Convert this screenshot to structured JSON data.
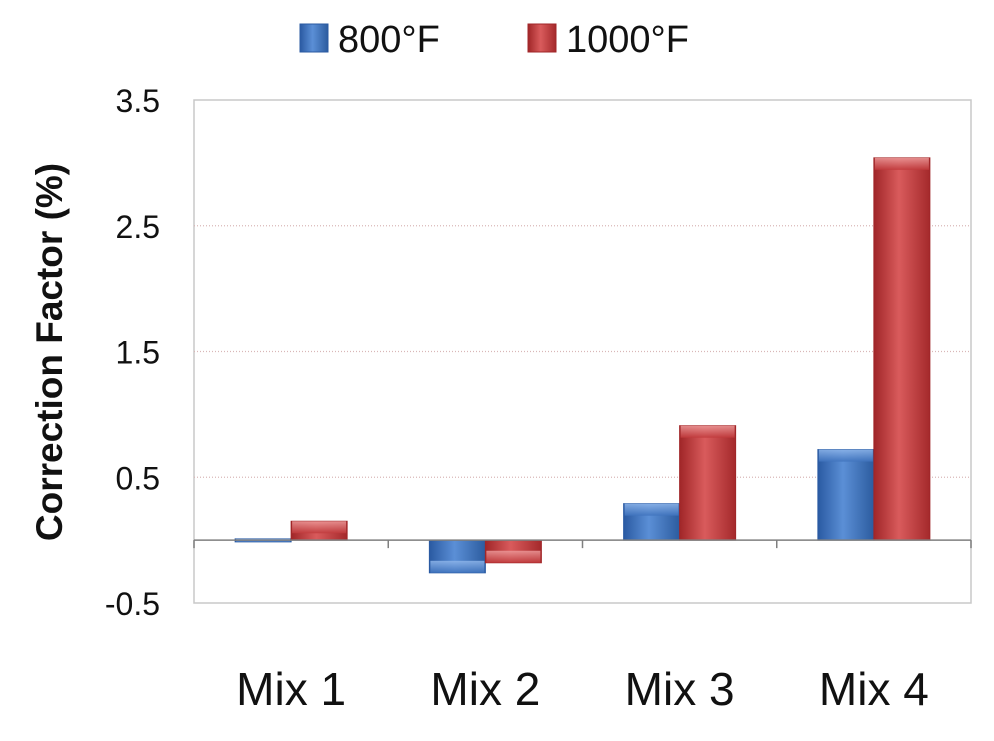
{
  "chart_data": {
    "type": "bar",
    "title": "",
    "xlabel": "",
    "ylabel": "Correction Factor (%)",
    "categories": [
      "Mix 1",
      "Mix 2",
      "Mix 3",
      "Mix 4"
    ],
    "series": [
      {
        "name": "800°F",
        "color": "#3e72bd",
        "values": [
          0.01,
          -0.26,
          0.29,
          0.72
        ]
      },
      {
        "name": "1000°F",
        "color": "#c0393b",
        "values": [
          0.15,
          -0.18,
          0.91,
          3.04
        ]
      }
    ],
    "yticks": [
      "3.5",
      "2.5",
      "1.5",
      "0.5",
      "-0.5"
    ],
    "ytick_values": [
      3.5,
      2.5,
      1.5,
      0.5,
      -0.5
    ],
    "ylim": [
      -0.5,
      3.5
    ],
    "grid": true,
    "legend_position": "top"
  }
}
